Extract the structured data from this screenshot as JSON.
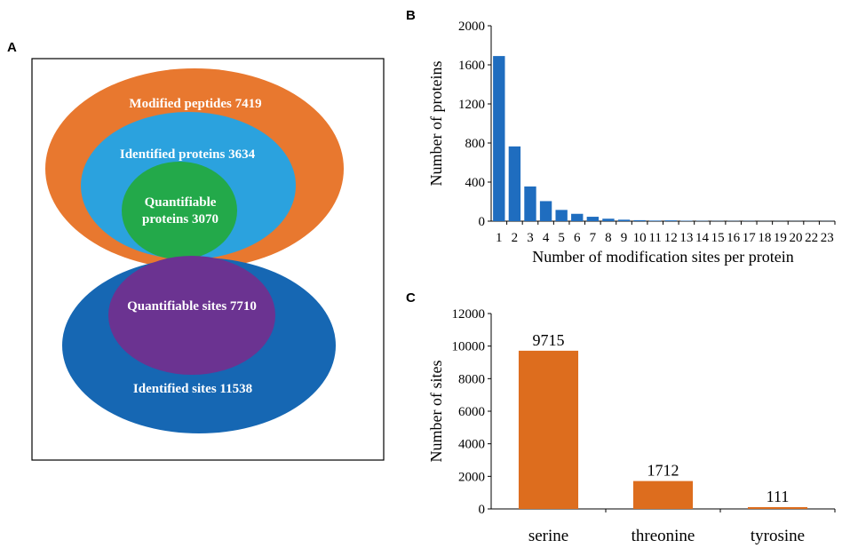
{
  "panels": {
    "a": {
      "letter": "A",
      "labels": {
        "modified_peptides": "Modified peptides 7419",
        "identified_proteins": "Identified proteins 3634",
        "quantifiable_proteins_line1": "Quantifiable",
        "quantifiable_proteins_line2": "proteins 3070",
        "quantifiable_sites": "Quantifiable sites 7710",
        "identified_sites": "Identified sites 11538"
      },
      "colors": {
        "modified_peptides": "#E8782F",
        "identified_proteins": "#2BA2DE",
        "quantifiable_proteins": "#23A94A",
        "identified_sites": "#1667B3",
        "quantifiable_sites": "#6B3391"
      }
    },
    "b": {
      "letter": "B"
    },
    "c": {
      "letter": "C"
    }
  },
  "chart_data": [
    {
      "id": "B",
      "type": "bar",
      "xlabel": "Number of modification sites per protein",
      "ylabel": "Number of proteins",
      "ylim": [
        0,
        2000
      ],
      "yticks": [
        0,
        400,
        800,
        1200,
        1600,
        2000
      ],
      "categories": [
        "1",
        "2",
        "3",
        "4",
        "5",
        "6",
        "7",
        "8",
        "9",
        "10",
        "11",
        "12",
        "13",
        "14",
        "15",
        "16",
        "17",
        "18",
        "19",
        "20",
        "22",
        "23"
      ],
      "values": [
        1690,
        765,
        355,
        205,
        115,
        75,
        45,
        25,
        15,
        10,
        6,
        8,
        4,
        3,
        2,
        2,
        2,
        1,
        1,
        1,
        1,
        1
      ],
      "color": "#1F6DBF"
    },
    {
      "id": "C",
      "type": "bar",
      "xlabel": "",
      "ylabel": "Number of sites",
      "ylim": [
        0,
        12000
      ],
      "yticks": [
        0,
        2000,
        4000,
        6000,
        8000,
        10000,
        12000
      ],
      "categories": [
        "serine",
        "threonine",
        "tyrosine"
      ],
      "values": [
        9715,
        1712,
        111
      ],
      "data_labels": [
        "9715",
        "1712",
        "111"
      ],
      "color": "#DD6D1E"
    }
  ]
}
